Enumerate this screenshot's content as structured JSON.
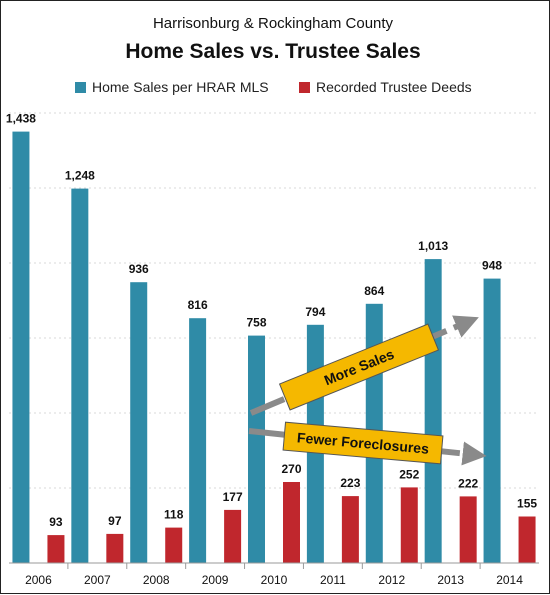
{
  "chart_data": {
    "type": "bar",
    "subtitle": "Harrisonburg & Rockingham County",
    "title": "Home Sales vs. Trustee Sales",
    "categories": [
      "2006",
      "2007",
      "2008",
      "2009",
      "2010",
      "2011",
      "2012",
      "2013",
      "2014"
    ],
    "series": [
      {
        "name": "Home Sales per HRAR MLS",
        "color": "#2f8ba7",
        "values": [
          1438,
          1248,
          936,
          816,
          758,
          794,
          864,
          1013,
          948
        ],
        "labels": [
          "1,438",
          "1,248",
          "936",
          "816",
          "758",
          "794",
          "864",
          "1,013",
          "948"
        ]
      },
      {
        "name": "Recorded Trustee Deeds",
        "color": "#c0272d",
        "values": [
          93,
          97,
          118,
          177,
          270,
          223,
          252,
          222,
          155
        ],
        "labels": [
          "93",
          "97",
          "118",
          "177",
          "270",
          "223",
          "252",
          "222",
          "155"
        ]
      }
    ],
    "ylim": [
      0,
      1500
    ],
    "grid": true,
    "legend": "top",
    "annotations": [
      {
        "text": "More Sales",
        "color": "#f5b800"
      },
      {
        "text": "Fewer Foreclosures",
        "color": "#f5b800"
      }
    ]
  }
}
